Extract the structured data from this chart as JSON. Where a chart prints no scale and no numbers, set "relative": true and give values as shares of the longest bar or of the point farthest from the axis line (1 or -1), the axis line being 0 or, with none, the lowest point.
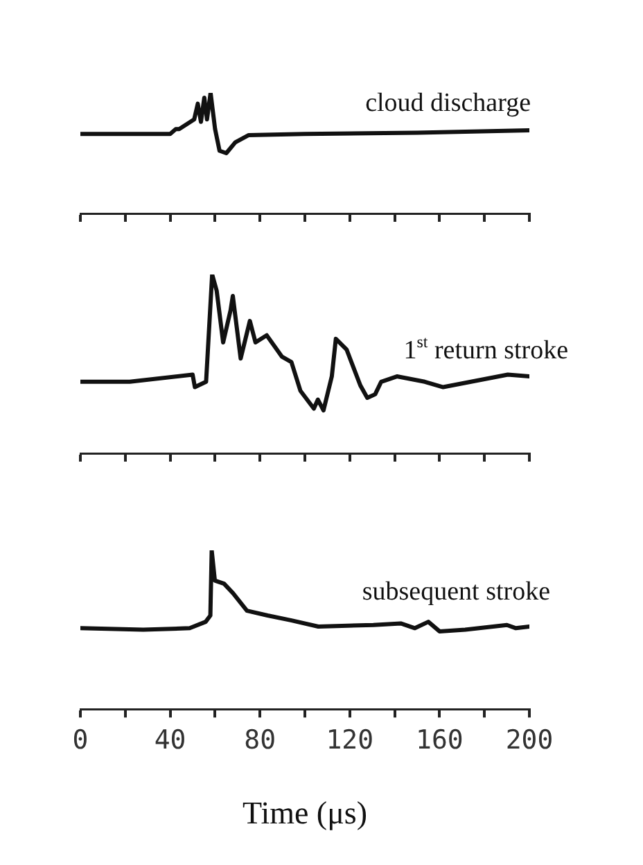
{
  "chart_data": [
    {
      "type": "line",
      "relative": true,
      "xlim": [
        0,
        200
      ],
      "xticks": [
        0,
        20,
        40,
        60,
        80,
        100,
        120,
        140,
        160,
        180,
        200
      ],
      "tick_labels": false,
      "grid": false,
      "legend": false,
      "marker": "none",
      "line_style": "solid",
      "series": [
        {
          "name": "cloud discharge",
          "color": "#111111",
          "x": [
            0,
            40,
            42.5,
            44,
            50.7,
            52.3,
            53.7,
            55.2,
            56.4,
            58,
            60,
            62,
            65,
            69,
            75,
            100,
            150,
            200
          ],
          "values": [
            0.66,
            0.66,
            0.7,
            0.7,
            0.78,
            0.91,
            0.76,
            0.96,
            0.78,
            1.0,
            0.7,
            0.52,
            0.5,
            0.59,
            0.65,
            0.66,
            0.67,
            0.69
          ]
        }
      ]
    },
    {
      "type": "line",
      "relative": true,
      "xlim": [
        0,
        200
      ],
      "xticks": [
        0,
        20,
        40,
        60,
        80,
        100,
        120,
        140,
        160,
        180,
        200
      ],
      "tick_labels": false,
      "grid": false,
      "legend": false,
      "marker": "none",
      "line_style": "solid",
      "series": [
        {
          "name": "1$^{st}$ return stroke",
          "color": "#111111",
          "x": [
            0,
            22,
            50,
            51,
            56,
            58.7,
            60.7,
            63.6,
            66.9,
            67.9,
            71.4,
            75.5,
            78,
            83,
            89.8,
            94,
            98,
            104,
            105.8,
            108.3,
            112,
            113.8,
            118.6,
            124.7,
            127.8,
            131.3,
            134,
            141,
            153.4,
            161.6,
            174,
            190.4,
            200
          ],
          "values": [
            0.4,
            0.4,
            0.44,
            0.37,
            0.4,
            1.0,
            0.91,
            0.62,
            0.8,
            0.88,
            0.53,
            0.74,
            0.62,
            0.66,
            0.54,
            0.51,
            0.35,
            0.25,
            0.3,
            0.24,
            0.43,
            0.64,
            0.58,
            0.38,
            0.31,
            0.33,
            0.4,
            0.43,
            0.4,
            0.37,
            0.4,
            0.44,
            0.43
          ]
        }
      ]
    },
    {
      "type": "line",
      "relative": true,
      "xlim": [
        0,
        200
      ],
      "xticks": [
        0,
        {
          "value": 20,
          "label": null
        },
        40,
        {
          "value": 60,
          "label": null
        },
        80,
        {
          "value": 100,
          "label": null
        },
        120,
        {
          "value": 140,
          "label": null
        },
        160,
        {
          "value": 180,
          "label": null
        },
        200
      ],
      "xlabel": "Time (μs)",
      "grid": false,
      "legend": false,
      "marker": "none",
      "line_style": "solid",
      "series": [
        {
          "name": "subsequent stroke",
          "color": "#111111",
          "x": [
            0,
            28,
            48.7,
            55.8,
            57.9,
            58.5,
            59.9,
            64,
            68,
            74.2,
            83.4,
            93.7,
            106,
            130.5,
            142.7,
            149,
            155,
            160,
            171.4,
            190,
            194,
            200
          ],
          "values": [
            0.51,
            0.5,
            0.51,
            0.55,
            0.59,
            1.0,
            0.81,
            0.79,
            0.73,
            0.62,
            0.59,
            0.56,
            0.52,
            0.53,
            0.54,
            0.51,
            0.55,
            0.49,
            0.5,
            0.53,
            0.51,
            0.52
          ]
        }
      ]
    }
  ]
}
